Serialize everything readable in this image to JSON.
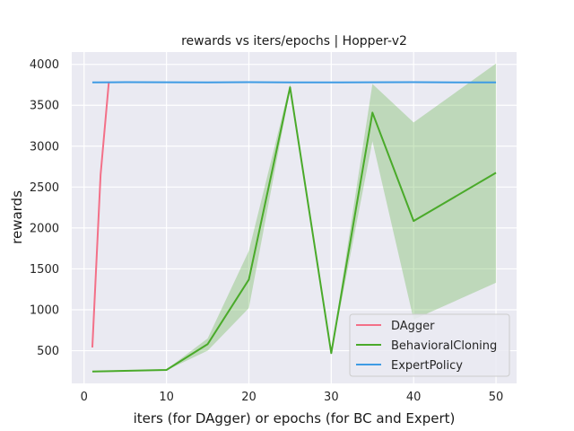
{
  "chart_data": {
    "type": "line",
    "title": "rewards vs iters/epochs | Hopper-v2",
    "xlabel": "iters (for DAgger) or epochs (for BC and Expert)",
    "ylabel": "rewards",
    "xlim": [
      -1.5,
      52.5
    ],
    "ylim": [
      100,
      4150
    ],
    "xticks": [
      0,
      10,
      20,
      30,
      40,
      50
    ],
    "yticks": [
      500,
      1000,
      1500,
      2000,
      2500,
      3000,
      3500,
      4000
    ],
    "grid": true,
    "legend_position": "lower-right",
    "series": [
      {
        "name": "DAgger",
        "color": "#f37088",
        "x": [
          1,
          2,
          3
        ],
        "y": [
          540,
          2650,
          3780
        ],
        "band_lower": [
          540,
          2650,
          3780
        ],
        "band_upper": [
          540,
          2650,
          3780
        ]
      },
      {
        "name": "BehavioralCloning",
        "color": "#4aaa2a",
        "x": [
          1,
          10,
          15,
          20,
          25,
          30,
          35,
          40,
          50
        ],
        "y": [
          245,
          265,
          580,
          1370,
          3720,
          470,
          3410,
          2085,
          2675
        ],
        "band_lower": [
          240,
          260,
          500,
          1020,
          3690,
          460,
          3060,
          880,
          1330
        ],
        "band_upper": [
          250,
          270,
          650,
          1720,
          3760,
          480,
          3760,
          3290,
          4010
        ]
      },
      {
        "name": "ExpertPolicy",
        "color": "#3e9be4",
        "x": [
          1,
          5,
          10,
          15,
          20,
          25,
          30,
          35,
          40,
          45,
          50
        ],
        "y": [
          3780,
          3782,
          3781,
          3779,
          3782,
          3780,
          3779,
          3781,
          3782,
          3780,
          3779
        ],
        "band_lower": [
          3775,
          3777,
          3776,
          3774,
          3777,
          3775,
          3774,
          3776,
          3777,
          3775,
          3774
        ],
        "band_upper": [
          3785,
          3787,
          3786,
          3784,
          3787,
          3785,
          3784,
          3786,
          3787,
          3785,
          3784
        ]
      }
    ]
  }
}
